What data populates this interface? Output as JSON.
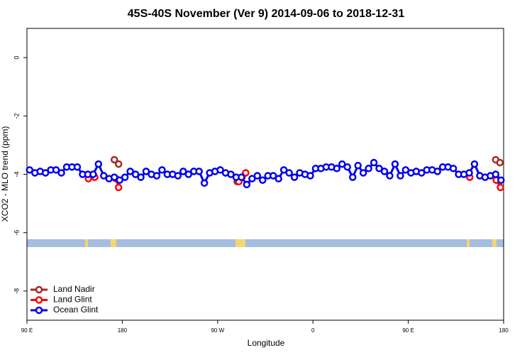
{
  "chart_data": {
    "type": "line",
    "title": "45S-40S November (Ver 9)   2014-09-06 to 2018-12-31",
    "x_label": "Longitude",
    "y_label": "XCO2 - MLO trend (ppm)",
    "xlim": [
      90,
      540
    ],
    "ylim": [
      -9,
      1
    ],
    "xticks": [
      {
        "value": 90,
        "label": "90 E"
      },
      {
        "value": 180,
        "label": "180"
      },
      {
        "value": 270,
        "label": "90 W"
      },
      {
        "value": 360,
        "label": "0"
      },
      {
        "value": 450,
        "label": "90 E"
      },
      {
        "value": 540,
        "label": "180"
      }
    ],
    "yticks": [
      -8,
      -6,
      -4,
      -2,
      0
    ],
    "legend": "bottom-left",
    "series": [
      {
        "name": "Land Nadir",
        "color": "#a52a2a",
        "x": [
          172.5,
          176.5,
          288.5,
          532.5,
          536.5
        ],
        "values": [
          -3.5,
          -3.65,
          -4.25,
          -3.5,
          -3.6
        ]
      },
      {
        "name": "Land Glint",
        "color": "#ff0000",
        "x": [
          148,
          154,
          174,
          176.5,
          290,
          293,
          296.5,
          508,
          533,
          537
        ],
        "values": [
          -4.15,
          -4.1,
          -4.15,
          -4.45,
          -4.25,
          -4.1,
          -3.95,
          -4.1,
          -4.2,
          -4.45
        ]
      },
      {
        "name": "Ocean Glint",
        "color": "#0000ee",
        "x": [
          92.5,
          97.5,
          102.5,
          107.5,
          112.5,
          117.5,
          122.5,
          127.5,
          132.5,
          137.5,
          142.5,
          147.5,
          152.5,
          157.5,
          162.5,
          167.5,
          172.5,
          177.5,
          182.5,
          187.5,
          192.5,
          197.5,
          202.5,
          207.5,
          212.5,
          217.5,
          222.5,
          227.5,
          232.5,
          237.5,
          242.5,
          247.5,
          252.5,
          257.5,
          262.5,
          267.5,
          272.5,
          277.5,
          282.5,
          287.5,
          292.5,
          297.5,
          302.5,
          307.5,
          312.5,
          317.5,
          322.5,
          327.5,
          332.5,
          337.5,
          342.5,
          347.5,
          352.5,
          357.5,
          362.5,
          367.5,
          372.5,
          377.5,
          382.5,
          387.5,
          392.5,
          397.5,
          402.5,
          407.5,
          412.5,
          417.5,
          422.5,
          427.5,
          432.5,
          437.5,
          442.5,
          447.5,
          452.5,
          457.5,
          462.5,
          467.5,
          472.5,
          477.5,
          482.5,
          487.5,
          492.5,
          497.5,
          502.5,
          507.5,
          512.5,
          517.5,
          522.5,
          527.5,
          532.5,
          537.5
        ],
        "values": [
          -3.85,
          -3.95,
          -3.9,
          -3.95,
          -3.85,
          -3.85,
          -3.95,
          -3.75,
          -3.75,
          -3.75,
          -4.0,
          -4.0,
          -4.0,
          -3.65,
          -4.05,
          -4.15,
          -4.1,
          -4.2,
          -4.1,
          -3.9,
          -4.0,
          -4.1,
          -3.9,
          -4.0,
          -4.05,
          -3.85,
          -4.0,
          -4.0,
          -4.05,
          -3.9,
          -4.0,
          -3.9,
          -3.9,
          -4.3,
          -3.95,
          -3.9,
          -3.85,
          -3.95,
          -4.0,
          -4.1,
          -4.1,
          -4.35,
          -4.15,
          -4.05,
          -4.2,
          -4.05,
          -4.05,
          -4.15,
          -3.85,
          -3.95,
          -4.1,
          -3.95,
          -4.0,
          -4.05,
          -3.8,
          -3.8,
          -3.75,
          -3.75,
          -3.8,
          -3.65,
          -3.75,
          -4.1,
          -3.7,
          -3.95,
          -3.8,
          -3.6,
          -3.8,
          -3.9,
          -4.05,
          -3.65,
          -4.05,
          -3.85,
          -3.95,
          -3.9,
          -3.95,
          -3.85,
          -3.85,
          -3.9,
          -3.75,
          -3.75,
          -3.8,
          -4.0,
          -4.0,
          -3.95,
          -3.65,
          -4.05,
          -4.1,
          -4.05,
          -4.0,
          -4.2
        ]
      }
    ]
  }
}
